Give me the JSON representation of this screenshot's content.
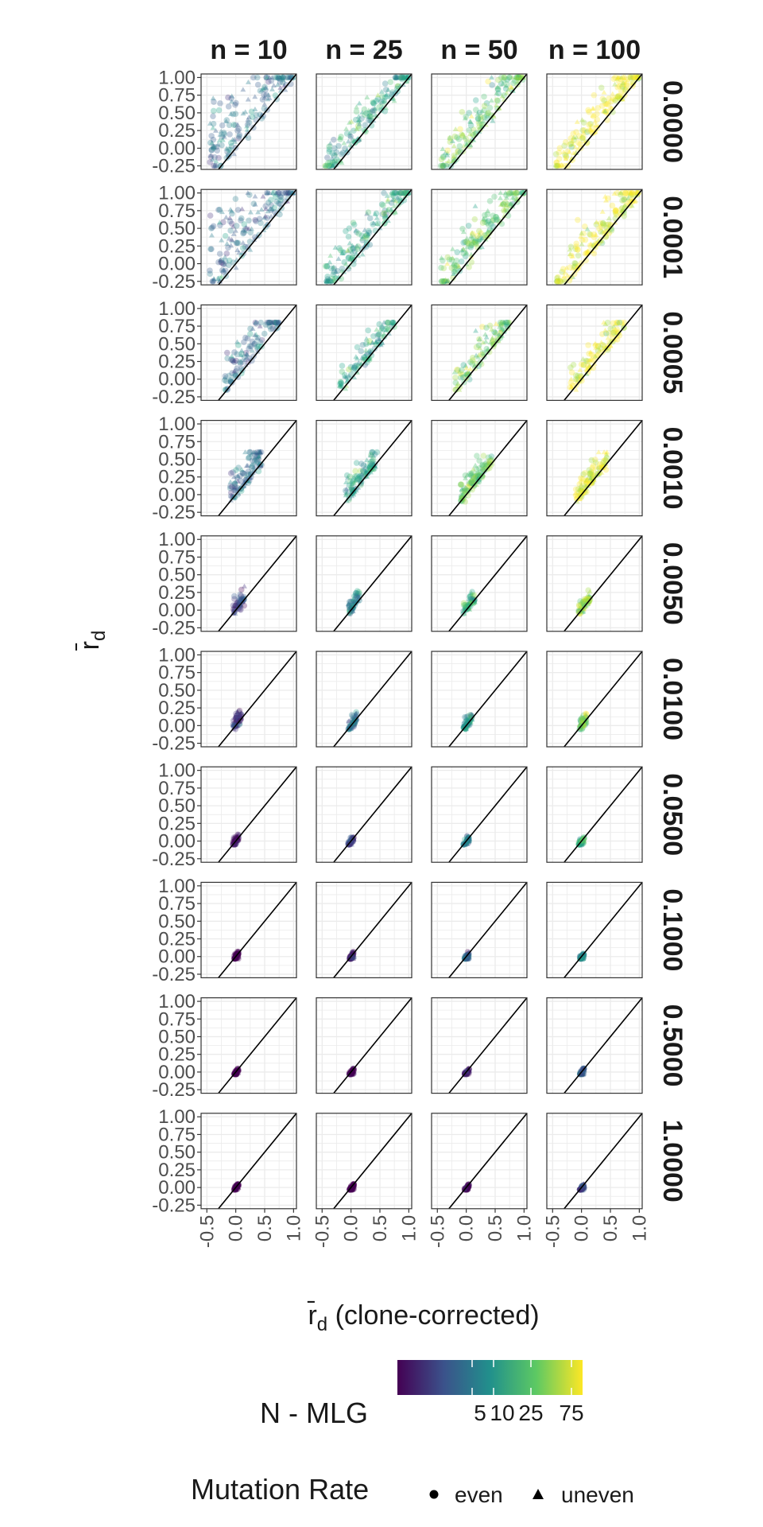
{
  "chart_data": {
    "type": "scatter",
    "facets": {
      "columns": [
        "n = 10",
        "n = 25",
        "n = 50",
        "n = 100"
      ],
      "rows": [
        "0.0000",
        "0.0001",
        "0.0005",
        "0.0010",
        "0.0050",
        "0.0100",
        "0.0500",
        "0.1000",
        "0.5000",
        "1.0000"
      ]
    },
    "xlabel": "r̄d (clone-corrected)",
    "xlabel_main": "r̄",
    "xlabel_sub": "d",
    "xlabel_rest": " (clone-corrected)",
    "ylabel_main": "r̄",
    "ylabel_sub": "d",
    "xlim": [
      -0.6,
      1.05
    ],
    "ylim": [
      -0.3,
      1.05
    ],
    "x_ticks": [
      "-0.5",
      "0.0",
      "0.5",
      "1.0"
    ],
    "y_ticks": [
      "-0.25",
      "0.00",
      "0.25",
      "0.50",
      "0.75",
      "1.00"
    ],
    "reference_line": "y = x",
    "grid": true,
    "color_legend": {
      "title": "N - MLG",
      "ticks": [
        "5",
        "10",
        "25",
        "75"
      ],
      "colors": [
        "#440154",
        "#3b528b",
        "#21908c",
        "#5dc963",
        "#fde725"
      ]
    },
    "shape_legend": {
      "title": "Mutation Rate",
      "entries": [
        {
          "label": "even",
          "shape": "circle"
        },
        {
          "label": "uneven",
          "shape": "triangle"
        }
      ]
    },
    "series_clouds": {
      "description_rows": [
        {
          "row": "0.0000",
          "x_range": [
            -0.45,
            1.0
          ],
          "y_range": [
            -0.25,
            1.0
          ]
        },
        {
          "row": "0.0001",
          "x_range": [
            -0.45,
            1.0
          ],
          "y_range": [
            -0.25,
            1.0
          ]
        },
        {
          "row": "0.0005",
          "x_range": [
            -0.2,
            0.75
          ],
          "y_range": [
            -0.15,
            0.8
          ]
        },
        {
          "row": "0.0010",
          "x_range": [
            -0.1,
            0.45
          ],
          "y_range": [
            -0.1,
            0.6
          ]
        },
        {
          "row": "0.0050",
          "x_range": [
            -0.05,
            0.15
          ],
          "y_range": [
            -0.05,
            0.35
          ]
        },
        {
          "row": "0.0100",
          "x_range": [
            -0.05,
            0.1
          ],
          "y_range": [
            -0.05,
            0.25
          ]
        },
        {
          "row": "0.0500",
          "x_range": [
            -0.05,
            0.05
          ],
          "y_range": [
            -0.05,
            0.1
          ]
        },
        {
          "row": "0.1000",
          "x_range": [
            -0.03,
            0.05
          ],
          "y_range": [
            -0.03,
            0.07
          ]
        },
        {
          "row": "0.5000",
          "x_range": [
            -0.03,
            0.05
          ],
          "y_range": [
            -0.03,
            0.05
          ]
        },
        {
          "row": "1.0000",
          "x_range": [
            -0.03,
            0.05
          ],
          "y_range": [
            -0.03,
            0.05
          ]
        }
      ]
    }
  }
}
